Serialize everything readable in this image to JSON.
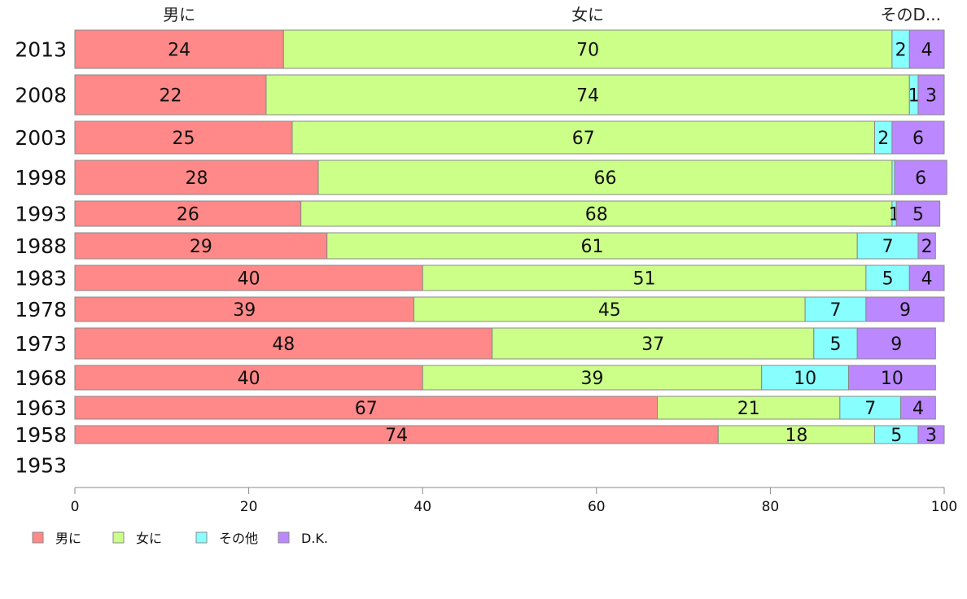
{
  "chart_data": {
    "type": "bar",
    "orientation": "horizontal",
    "stacked": true,
    "title": "",
    "xlabel": "",
    "ylabel": "",
    "xlim": [
      0,
      100
    ],
    "xticks": [
      "0",
      "20",
      "40",
      "60",
      "80",
      "100"
    ],
    "grid": false,
    "legend_position": "bottom-left",
    "top_labels": [
      "男に",
      "女に",
      "その他"
    ],
    "categories": [
      "2013",
      "2008",
      "2003",
      "1998",
      "1993",
      "1988",
      "1983",
      "1978",
      "1973",
      "1968",
      "1963",
      "1958",
      "1953"
    ],
    "series": [
      {
        "name": "男に",
        "color": "#ff8888",
        "values": [
          24,
          22,
          25,
          28,
          26,
          29,
          40,
          39,
          48,
          40,
          67,
          74,
          null
        ]
      },
      {
        "name": "女に",
        "color": "#ccff88",
        "values": [
          70,
          74,
          67,
          66,
          68,
          61,
          51,
          45,
          37,
          39,
          21,
          18,
          null
        ]
      },
      {
        "name": "その他",
        "color": "#88ffff",
        "values": [
          2,
          1,
          2,
          0.3,
          0.5,
          7,
          5,
          7,
          5,
          10,
          7,
          5,
          null
        ]
      },
      {
        "name": "D.K.",
        "color": "#bb88ff",
        "values": [
          4,
          3,
          6,
          6,
          5,
          2,
          4,
          9,
          9,
          10,
          4,
          3,
          null
        ]
      }
    ],
    "value_labels": [
      [
        "24",
        "70",
        "2",
        "4"
      ],
      [
        "22",
        "74",
        "1",
        "3"
      ],
      [
        "25",
        "67",
        "2",
        "6"
      ],
      [
        "28",
        "66",
        "",
        "6"
      ],
      [
        "26",
        "68",
        "1",
        "5"
      ],
      [
        "29",
        "61",
        "7",
        "2"
      ],
      [
        "40",
        "51",
        "5",
        "4"
      ],
      [
        "39",
        "45",
        "7",
        "9"
      ],
      [
        "48",
        "37",
        "5",
        "9"
      ],
      [
        "40",
        "39",
        "10",
        "10"
      ],
      [
        "67",
        "21",
        "7",
        "4"
      ],
      [
        "74",
        "18",
        "5",
        "3"
      ],
      [
        "",
        "",
        "",
        ""
      ]
    ]
  }
}
